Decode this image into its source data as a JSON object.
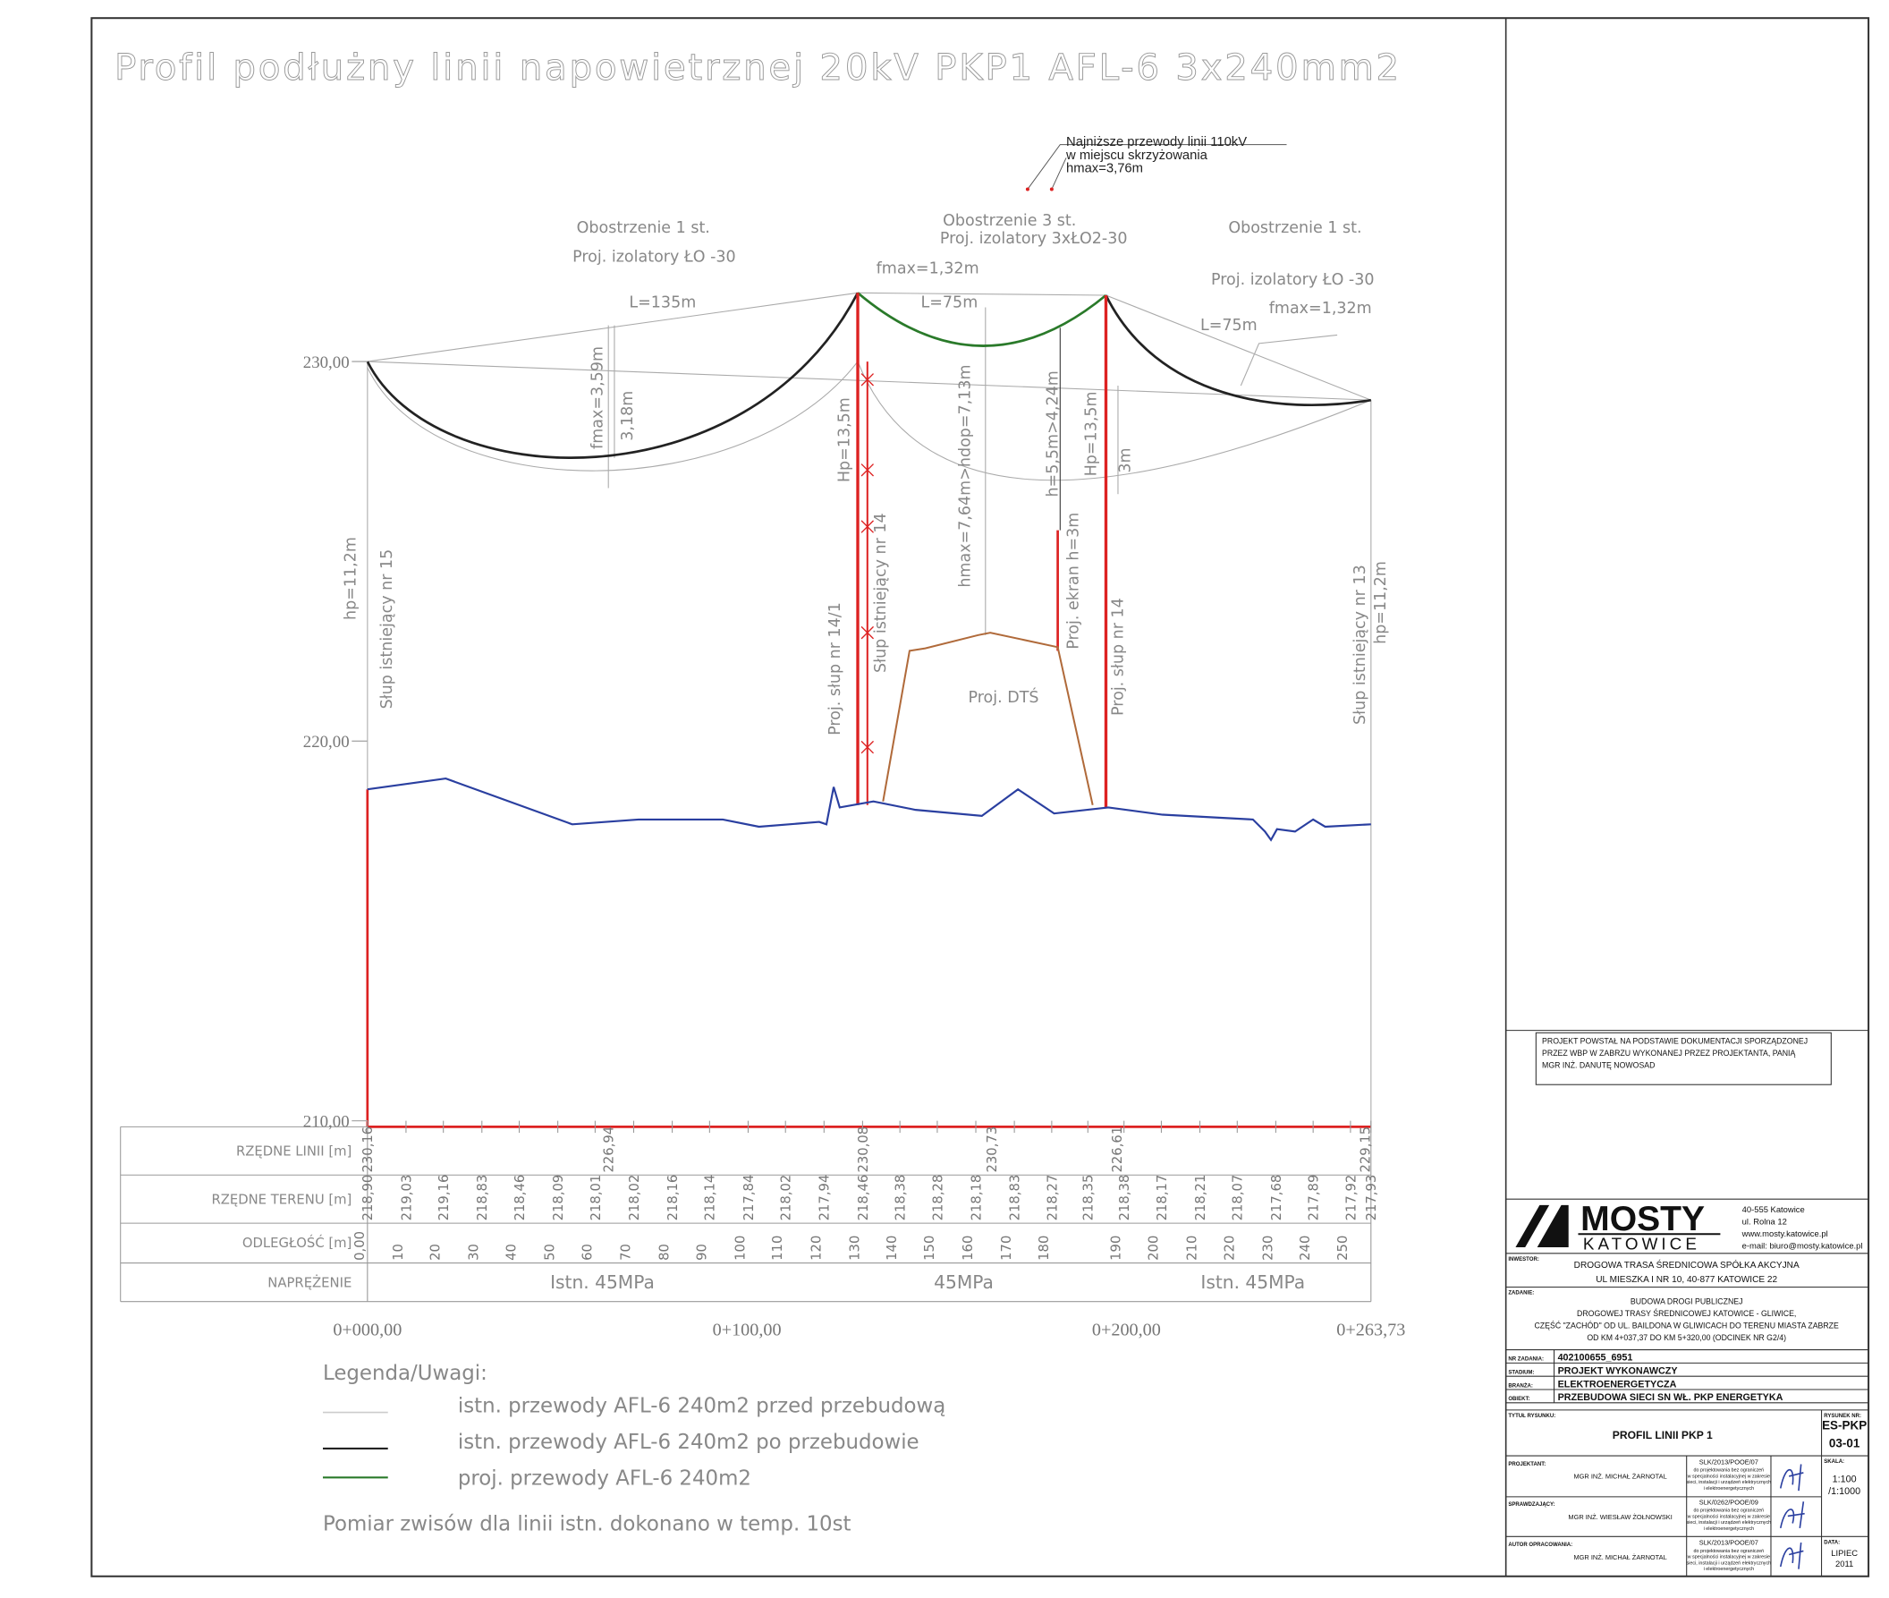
{
  "title": "Profil podłużny linii napowietrznej 20kV PKP1 AFL-6 3x240mm2",
  "crossing_note": [
    "Najniższe przewody linii 110kV",
    "w miejscu skrzyżowania",
    "hmax=3,76m"
  ],
  "annotations": [
    "Obostrzenie 1 st.",
    "Proj. izolatory ŁO -30",
    "Obostrzenie 3 st.",
    "Proj. izolatory 3xŁO2-30",
    "Obostrzenie 1 st.",
    "Proj. izolatory ŁO -30",
    "L=135m",
    "fmax=1,32m",
    "L=75m",
    "L=75m",
    "fmax=1,32m",
    "fmax=3,59m",
    "3,18m",
    "hp=11,2m",
    "Słup istniejący nr 15",
    "Hp=13,5m",
    "Proj. słup nr 14/1",
    "Słup istniejący nr 14",
    "hmax=7,64m>hdop=7,13m",
    "h=5,5m>4,24m",
    "Proj. ekran h=3m",
    "Hp=13,5m",
    "3m",
    "Proj. słup nr 14",
    "Słup istniejący nr 13",
    "hp=11,2m",
    "Proj. DTŚ"
  ],
  "elevations": [
    "230,00",
    "220,00",
    "210,00"
  ],
  "chainages": [
    "0+000,00",
    "0+100,00",
    "0+200,00",
    "0+263,73"
  ],
  "table": {
    "row_labels": [
      "RZĘDNE LINII [m]",
      "RZĘDNE TERENU [m]",
      "ODLEGŁOŚĆ [m]",
      "NAPRĘŻENIE"
    ],
    "line_levels": [
      "230,16",
      "226,94",
      "230,08",
      "230,73",
      "226,61",
      "229,15"
    ],
    "terrain": [
      {
        "distance": "0,00",
        "level": "218,90"
      },
      {
        "distance": "10",
        "level": "219,03"
      },
      {
        "distance": "20",
        "level": "219,16"
      },
      {
        "distance": "30",
        "level": "218,83"
      },
      {
        "distance": "40",
        "level": "218,46"
      },
      {
        "distance": "50",
        "level": "218,09"
      },
      {
        "distance": "60",
        "level": "218,01"
      },
      {
        "distance": "70",
        "level": "218,02"
      },
      {
        "distance": "80",
        "level": "218,16"
      },
      {
        "distance": "90",
        "level": "218,14"
      },
      {
        "distance": "100",
        "level": "217,84"
      },
      {
        "distance": "110",
        "level": "218,02"
      },
      {
        "distance": "120",
        "level": "217,94"
      },
      {
        "distance": "130",
        "level": "218,46"
      },
      {
        "distance": "140",
        "level": "218,38"
      },
      {
        "distance": "150",
        "level": "218,28"
      },
      {
        "distance": "160",
        "level": "218,18"
      },
      {
        "distance": "170",
        "level": "218,83"
      },
      {
        "distance": "180",
        "level": "218,27"
      },
      {
        "level": "218,35"
      },
      {
        "distance": "190",
        "level": "218,38"
      },
      {
        "distance": "200",
        "level": "218,17"
      },
      {
        "distance": "210",
        "level": "218,21"
      },
      {
        "distance": "220",
        "level": "218,07"
      },
      {
        "distance": "230",
        "level": "217,68"
      },
      {
        "distance": "240",
        "level": "217,89"
      },
      {
        "distance": "250",
        "level": "217,92"
      },
      {
        "level": "217,93"
      }
    ],
    "tension": [
      "Istn. 45MPa",
      "45MPa",
      "Istn. 45MPa"
    ]
  },
  "legend": {
    "title": "Legenda/Uwagi:",
    "items": [
      "istn. przewody AFL-6 240m2 przed przebudową",
      "istn. przewody AFL-6 240m2 po przebudowie",
      "proj. przewody AFL-6 240m2"
    ],
    "note": "Pomiar zwisów dla linii istn. dokonano w temp. 10st"
  },
  "title_block": {
    "source_note": [
      "PROJEKT POWSTAŁ NA PODSTAWIE DOKUMENTACJI SPORZĄDZONEJ",
      "PRZEZ WBP W ZABRZU WYKONANEJ PRZEZ PROJEKTANTA, PANIĄ",
      "MGR INŻ. DANUTĘ NOWOSAD"
    ],
    "company": "MOSTY",
    "city": "KATOWICE",
    "address": [
      "40-555 Katowice",
      "ul. Rolna 12",
      "www.mosty.katowice.pl",
      "e-mail: biuro@mosty.katowice.pl"
    ],
    "investor_label": "INWESTOR:",
    "investor": [
      "DROGOWA TRASA ŚREDNICOWA SPÓŁKA AKCYJNA",
      "UL MIESZKA I NR 10, 40-877 KATOWICE 22"
    ],
    "task_label": "ZADANIE:",
    "task": [
      "BUDOWA DROGI PUBLICZNEJ",
      "DROGOWEJ TRASY ŚREDNICOWEJ KATOWICE - GLIWICE,",
      "CZĘŚĆ \"ZACHÓD\" OD UL. BAILDONA W GLIWICACH DO TERENU MIASTA ZABRZE",
      "OD KM 4+037,37 DO KM 5+320,00 (ODCINEK NR G2/4)"
    ],
    "fields": [
      {
        "label": "NR ZADANIA:",
        "value": "402100655_6951"
      },
      {
        "label": "STADIUM:",
        "value": "PROJEKT WYKONAWCZY"
      },
      {
        "label": "BRANŻA:",
        "value": "ELEKTROENERGETYCZA"
      },
      {
        "label": "OBIEKT:",
        "value": "PRZEBUDOWA SIECI SN WŁ. PKP ENERGETYKA"
      }
    ],
    "drawing_title_label": "TYTUŁ RYSUNKU:",
    "drawing_title": "PROFIL LINII PKP 1",
    "drawing_no_label": "RYSUNEK NR:",
    "drawing_no": [
      "ES-PKP",
      "03-01"
    ],
    "scale_label": "SKALA:",
    "scale": [
      "1:100",
      "/1:1000"
    ],
    "date_label": "DATA:",
    "date": [
      "LIPIEC",
      "2011"
    ],
    "people": [
      {
        "role": "PROJEKTANT:",
        "name": "MGR INŻ. MICHAŁ ŻARNOTAL",
        "licence": "SLK/2013/POOE/07",
        "scope": [
          "do projektowania bez ograniczeń",
          "w specjalności instalacyjnej w zakresie",
          "sieci, instalacji i urządzeń elektrycznych",
          "i elektroenergetycznych"
        ]
      },
      {
        "role": "SPRAWDZAJĄCY:",
        "name": "MGR INŻ. WIESŁAW ŻOŁNOWSKI",
        "licence": "SLK/0262/POOE/09",
        "scope": [
          "do projektowania bez ograniczeń",
          "w specjalności instalacyjnej w zakresie",
          "sieci, instalacji i urządzeń elektrycznych",
          "i elektroenergetycznych"
        ]
      },
      {
        "role": "AUTOR OPRACOWANIA:",
        "name": "MGR INŻ. MICHAŁ ŻARNOTAL",
        "licence": "SLK/2013/POOE/07",
        "scope": [
          "do projektowania bez ograniczeń",
          "w specjalności instalacyjnej w zakresie",
          "sieci, instalacji i urządzeń elektrycznych",
          "i elektroenergetycznych"
        ]
      }
    ]
  }
}
